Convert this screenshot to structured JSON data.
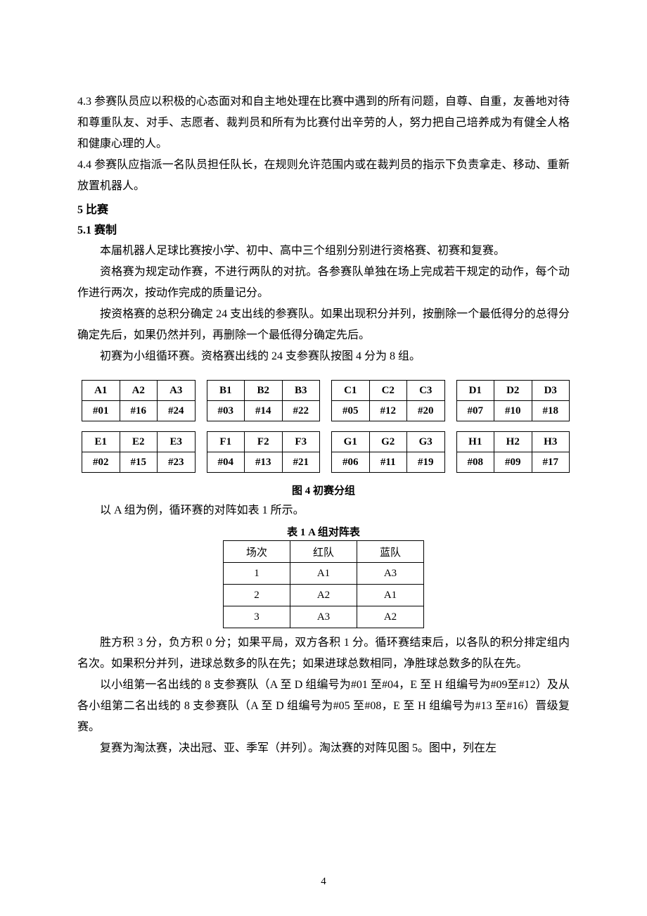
{
  "paragraphs": {
    "p43": "4.3 参赛队员应以积极的心态面对和自主地处理在比赛中遇到的所有问题，自尊、自重，友善地对待和尊重队友、对手、志愿者、裁判员和所有为比赛付出辛劳的人，努力把自己培养成为有健全人格和健康心理的人。",
    "p44": "4.4 参赛队应指派一名队员担任队长，在规则允许范围内或在裁判员的指示下负责拿走、移动、重新放置机器人。"
  },
  "sec5": {
    "title": "5 比赛",
    "sub1": "5.1 赛制",
    "body1": "本届机器人足球比赛按小学、初中、高中三个组别分别进行资格赛、初赛和复赛。",
    "body2": "资格赛为规定动作赛，不进行两队的对抗。各参赛队单独在场上完成若干规定的动作，每个动作进行两次，按动作完成的质量记分。",
    "body3": "按资格赛的总积分确定 24 支出线的参赛队。如果出现积分并列，按删除一个最低得分的总得分确定先后，如果仍然并列，再删除一个最低得分确定先后。",
    "body4": "初赛为小组循环赛。资格赛出线的 24 支参赛队按图 4 分为 8 组。"
  },
  "groups_row1": [
    {
      "head": [
        "A1",
        "A2",
        "A3"
      ],
      "vals": [
        "#01",
        "#16",
        "#24"
      ]
    },
    {
      "head": [
        "B1",
        "B2",
        "B3"
      ],
      "vals": [
        "#03",
        "#14",
        "#22"
      ]
    },
    {
      "head": [
        "C1",
        "C2",
        "C3"
      ],
      "vals": [
        "#05",
        "#12",
        "#20"
      ]
    },
    {
      "head": [
        "D1",
        "D2",
        "D3"
      ],
      "vals": [
        "#07",
        "#10",
        "#18"
      ]
    }
  ],
  "groups_row2": [
    {
      "head": [
        "E1",
        "E2",
        "E3"
      ],
      "vals": [
        "#02",
        "#15",
        "#23"
      ]
    },
    {
      "head": [
        "F1",
        "F2",
        "F3"
      ],
      "vals": [
        "#04",
        "#13",
        "#21"
      ]
    },
    {
      "head": [
        "G1",
        "G2",
        "G3"
      ],
      "vals": [
        "#06",
        "#11",
        "#19"
      ]
    },
    {
      "head": [
        "H1",
        "H2",
        "H3"
      ],
      "vals": [
        "#08",
        "#09",
        "#17"
      ]
    }
  ],
  "fig4": "图 4 初赛分组",
  "afterFig": "以 A 组为例，循环赛的对阵如表 1 所示。",
  "tbl1_caption": "表 1 A 组对阵表",
  "match_table": {
    "header": [
      "场次",
      "红队",
      "蓝队"
    ],
    "rows": [
      [
        "1",
        "A1",
        "A3"
      ],
      [
        "2",
        "A2",
        "A1"
      ],
      [
        "3",
        "A3",
        "A2"
      ]
    ]
  },
  "after_tbl1": "胜方积 3 分，负方积 0 分；如果平局，双方各积 1 分。循环赛结束后，以各队的积分排定组内名次。如果积分并列，进球总数多的队在先；如果进球总数相同，净胜球总数多的队在先。",
  "after_tbl2": "以小组第一名出线的 8 支参赛队（A 至 D 组编号为#01 至#04，E 至 H 组编号为#09至#12）及从各小组第二名出线的 8 支参赛队（A 至 D 组编号为#05 至#08，E 至 H 组编号为#13 至#16）晋级复赛。",
  "after_tbl3": "复赛为淘汰赛，决出冠、亚、季军（并列）。淘汰赛的对阵见图 5。图中，列在左",
  "page_num": "4"
}
